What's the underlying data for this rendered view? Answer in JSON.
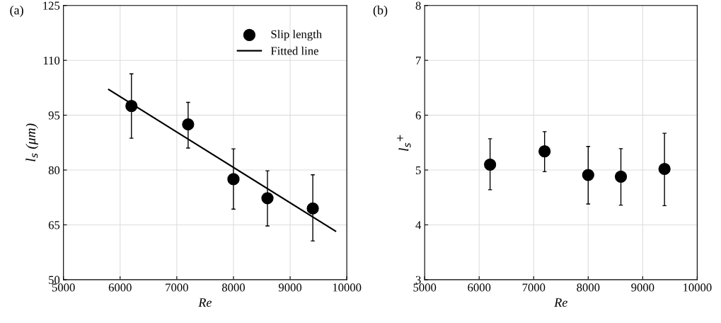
{
  "chart_data": [
    {
      "type": "scatter",
      "title": "(a)",
      "xlabel": "Re",
      "ylabel": "l$_{s}$ (μm)",
      "xlim": [
        5000,
        10000
      ],
      "xticks": [
        5000,
        6000,
        7000,
        8000,
        9000,
        10000
      ],
      "ylim": [
        50,
        125
      ],
      "yticks": [
        50,
        65,
        80,
        95,
        110,
        125
      ],
      "grid": true,
      "legend": "top right",
      "series": [
        {
          "name": "Slip length",
          "marker": "circle",
          "color": "#000000",
          "x": [
            6200,
            7200,
            8000,
            8600,
            9400
          ],
          "values": [
            97.5,
            92.5,
            77.5,
            72.3,
            69.5
          ],
          "errors": [
            [
              88.7,
              106.3
            ],
            [
              86,
              98.5
            ],
            [
              69.3,
              85.8
            ],
            [
              64.7,
              79.8
            ],
            [
              60.6,
              78.7
            ]
          ]
        },
        {
          "name": "Fitted line",
          "type": "line",
          "color": "#000000",
          "x": [
            5800,
            9800
          ],
          "values": [
            102,
            63.3
          ],
          "line_style": "solid"
        }
      ]
    },
    {
      "type": "scatter",
      "title": "(b)",
      "xlabel": "Re",
      "ylabel": "l$_{s}$$^{+}$",
      "xlim": [
        5000,
        10000
      ],
      "xticks": [
        5000,
        6000,
        7000,
        8000,
        9000,
        10000
      ],
      "ylim": [
        3,
        8
      ],
      "yticks": [
        3,
        4,
        5,
        6,
        7,
        8
      ],
      "grid": true,
      "series": [
        {
          "marker": "circle",
          "color": "#000000",
          "x": [
            6200,
            7200,
            8000,
            8600,
            9400
          ],
          "values": [
            5.1,
            5.34,
            4.91,
            4.88,
            5.02
          ],
          "errors": [
            [
              4.64,
              5.57
            ],
            [
              4.97,
              5.7
            ],
            [
              4.38,
              5.43
            ],
            [
              4.36,
              5.39
            ],
            [
              4.35,
              5.67
            ]
          ]
        }
      ]
    }
  ]
}
